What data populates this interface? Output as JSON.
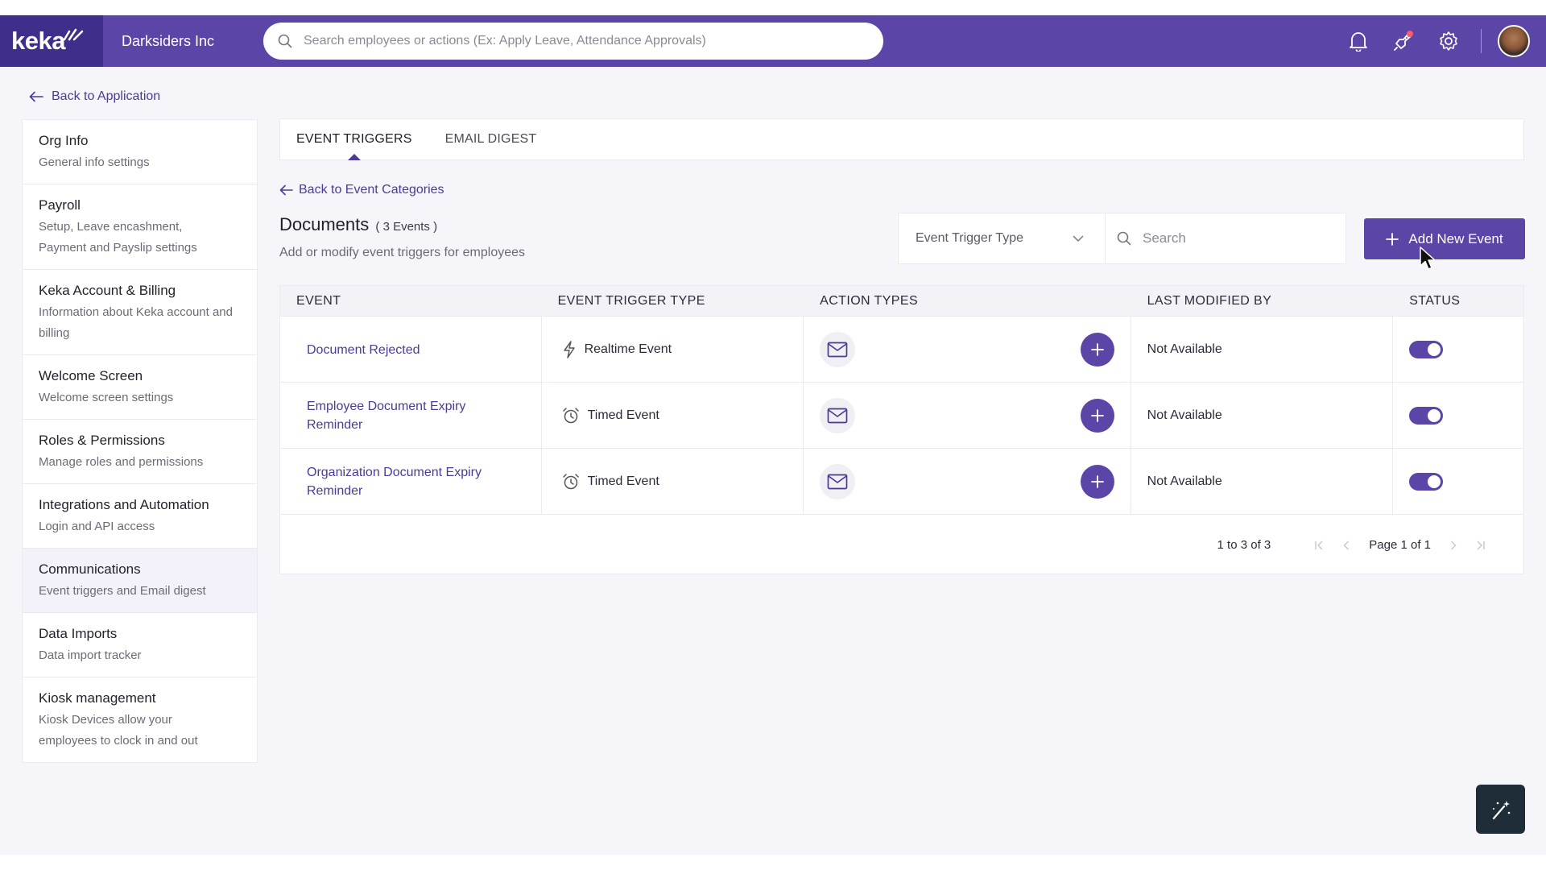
{
  "header": {
    "logo": "keka",
    "company": "Darksiders Inc",
    "search_placeholder": "Search employees or actions (Ex: Apply Leave, Attendance Approvals)",
    "color": "#5b45a6",
    "icons": [
      "bell-icon",
      "rocket-icon",
      "gear-icon"
    ]
  },
  "back_to_application": "Back to Application",
  "sidebar": {
    "items": [
      {
        "title": "Org Info",
        "desc": "General info settings"
      },
      {
        "title": "Payroll",
        "desc": "Setup, Leave encashment, Payment and Payslip settings"
      },
      {
        "title": "Keka Account & Billing",
        "desc": "Information about Keka account and billing"
      },
      {
        "title": "Welcome Screen",
        "desc": "Welcome screen settings"
      },
      {
        "title": "Roles & Permissions",
        "desc": "Manage roles and permissions"
      },
      {
        "title": "Integrations and Automation",
        "desc": "Login and API access"
      },
      {
        "title": "Communications",
        "desc": "Event triggers and Email digest"
      },
      {
        "title": "Data Imports",
        "desc": "Data import tracker"
      },
      {
        "title": "Kiosk management",
        "desc": "Kiosk Devices allow your employees to clock in and out"
      }
    ],
    "active": "Communications"
  },
  "tabs": [
    {
      "label": "EVENT TRIGGERS",
      "active": true
    },
    {
      "label": "EMAIL DIGEST",
      "active": false
    }
  ],
  "back_to_categories": "Back to Event Categories",
  "section": {
    "title": "Documents",
    "count": "( 3 Events )",
    "subtitle": "Add or modify event triggers for employees"
  },
  "filters": {
    "trigger_type_label": "Event Trigger Type",
    "search_placeholder": "Search"
  },
  "add_button": "Add New Event",
  "table": {
    "headers": [
      "EVENT",
      "EVENT TRIGGER TYPE",
      "ACTION TYPES",
      "LAST MODIFIED BY",
      "STATUS"
    ],
    "rows": [
      {
        "event": "Document Rejected",
        "trigger": "Realtime Event",
        "trigger_icon": "lightning-icon",
        "action_icon": "mail-icon",
        "modified_by": "Not Available",
        "status": true
      },
      {
        "event": "Employee Document Expiry Reminder",
        "trigger": "Timed Event",
        "trigger_icon": "alarm-clock-icon",
        "action_icon": "mail-icon",
        "modified_by": "Not Available",
        "status": true
      },
      {
        "event": "Organization Document Expiry Reminder",
        "trigger": "Timed Event",
        "trigger_icon": "alarm-clock-icon",
        "action_icon": "mail-icon",
        "modified_by": "Not Available",
        "status": true
      }
    ]
  },
  "pagination": {
    "range": "1 to 3 of 3",
    "page_label": "Page 1 of 1"
  }
}
